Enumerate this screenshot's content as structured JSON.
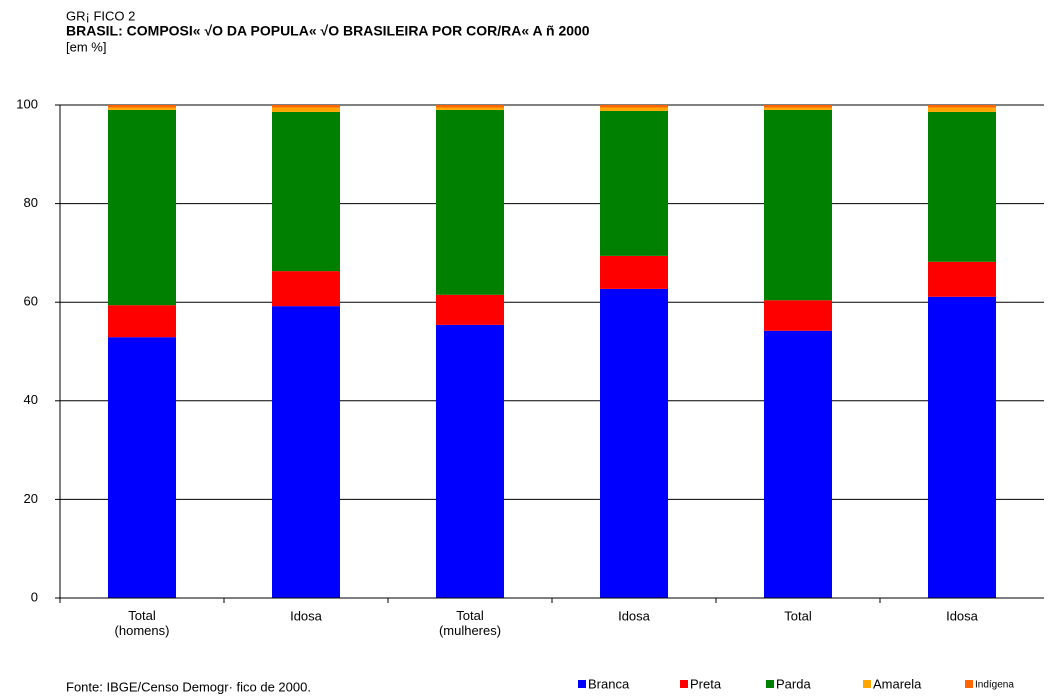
{
  "chart_data": {
    "type": "stacked_bar",
    "pretitle": "GR¡ FICO 2",
    "title": "BRASIL: COMPOSI« √O DA POPULA« √O BRASILEIRA POR COR/RA« A ñ 2000",
    "subtitle": "[em %]",
    "source": "Fonte: IBGE/Censo Demogr· fico de 2000.",
    "categories": [
      "Total\n(homens)",
      "Idosa",
      "Total\n(mulheres)",
      "Idosa",
      "Total",
      "Idosa"
    ],
    "series": [
      {
        "name": "Branca",
        "color": "#0000ff",
        "values": [
          52.9,
          59.2,
          55.4,
          62.7,
          54.2,
          61.1
        ]
      },
      {
        "name": "Preta",
        "color": "#ff0000",
        "values": [
          6.5,
          7.1,
          6.1,
          6.7,
          6.2,
          7.1
        ]
      },
      {
        "name": "Parda",
        "color": "#008000",
        "values": [
          39.6,
          32.3,
          37.5,
          29.4,
          38.6,
          30.4
        ]
      },
      {
        "name": "Amarela",
        "color": "#ffa500",
        "values": [
          0.5,
          0.9,
          0.5,
          0.7,
          0.5,
          0.9
        ]
      },
      {
        "name": "Indígena",
        "color": "#ff6600",
        "values": [
          0.5,
          0.5,
          0.5,
          0.5,
          0.5,
          0.5
        ]
      }
    ],
    "ylim": [
      0,
      100
    ],
    "yticks": [
      0,
      20,
      40,
      60,
      80,
      100
    ],
    "grid": true
  }
}
